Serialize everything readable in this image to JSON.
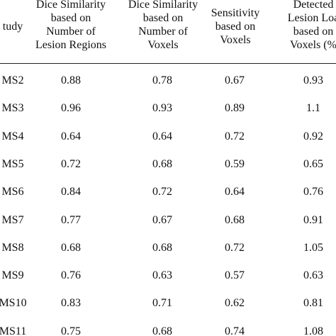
{
  "table": {
    "headers": [
      [
        "tudy"
      ],
      [
        "Dice Similarity",
        "based on",
        "Number of",
        "Lesion Regions"
      ],
      [
        "Dice Similarity",
        "based on",
        "Number of",
        "Voxels"
      ],
      [
        "Sensitivity",
        "based on",
        "Voxels"
      ],
      [
        "Detected",
        "Lesion Loa",
        "based on",
        "Voxels (%"
      ]
    ],
    "rows": [
      [
        "MS2",
        "0.88",
        "0.78",
        "0.67",
        "0.93"
      ],
      [
        "MS3",
        "0.96",
        "0.93",
        "0.89",
        "1.1"
      ],
      [
        "MS4",
        "0.64",
        "0.64",
        "0.72",
        "0.92"
      ],
      [
        "MS5",
        "0.72",
        "0.68",
        "0.59",
        "0.65"
      ],
      [
        "MS6",
        "0.84",
        "0.72",
        "0.64",
        "0.76"
      ],
      [
        "MS7",
        "0.77",
        "0.67",
        "0.68",
        "0.91"
      ],
      [
        "MS8",
        "0.68",
        "0.68",
        "0.72",
        "1.05"
      ],
      [
        "MS9",
        "0.76",
        "0.63",
        "0.57",
        "0.63"
      ],
      [
        "MS10",
        "0.83",
        "0.71",
        "0.62",
        "0.81"
      ],
      [
        "MS11",
        "0.75",
        "0.68",
        "0.74",
        "1.08"
      ]
    ]
  }
}
